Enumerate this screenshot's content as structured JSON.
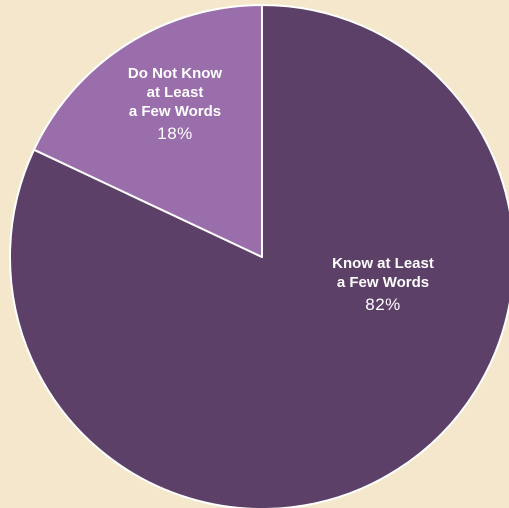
{
  "background_color": "#f5e7cc",
  "chart_data": {
    "type": "pie",
    "title": "",
    "start_angle_deg": 0,
    "direction": "clockwise",
    "slices": [
      {
        "label_lines": [
          "Know at Least",
          "a Few Words"
        ],
        "value": 82,
        "value_label": "82%",
        "color": "#5c4068"
      },
      {
        "label_lines": [
          "Do Not Know",
          "at Least",
          "a Few Words"
        ],
        "value": 18,
        "value_label": "18%",
        "color": "#9a6dab"
      }
    ]
  }
}
